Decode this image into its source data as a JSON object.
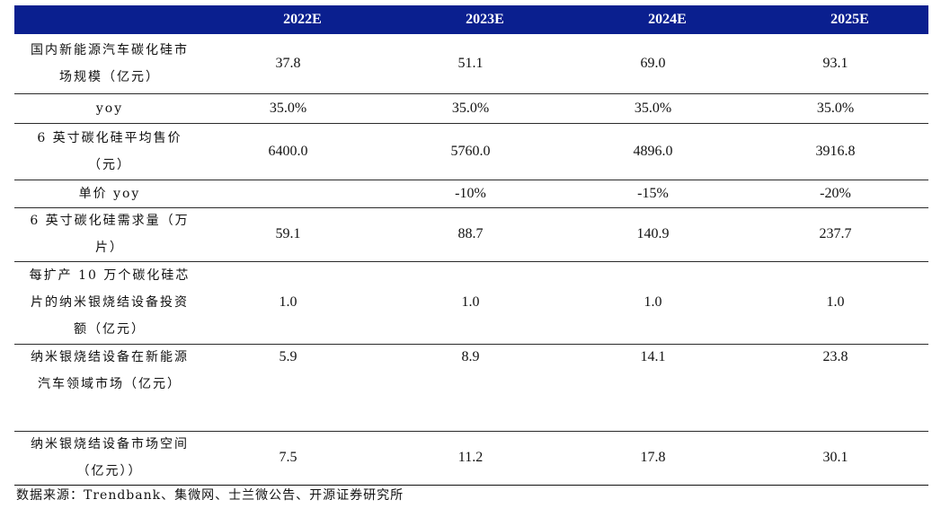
{
  "table": {
    "columns": [
      "2022E",
      "2023E",
      "2024E",
      "2025E"
    ],
    "rows": [
      {
        "label": [
          "国内新能源汽车碳化硅市",
          "场规模（亿元）"
        ],
        "values": [
          "37.8",
          "51.1",
          "69.0",
          "93.1"
        ]
      },
      {
        "label": [
          "yoy"
        ],
        "values": [
          "35.0%",
          "35.0%",
          "35.0%",
          "35.0%"
        ]
      },
      {
        "label": [
          "6 英寸碳化硅平均售价",
          "（元）"
        ],
        "values": [
          "6400.0",
          "5760.0",
          "4896.0",
          "3916.8"
        ]
      },
      {
        "label": [
          "单价 yoy"
        ],
        "values": [
          "",
          "-10%",
          "-15%",
          "-20%"
        ]
      },
      {
        "label": [
          "6 英寸碳化硅需求量（万",
          "片）"
        ],
        "values": [
          "59.1",
          "88.7",
          "140.9",
          "237.7"
        ]
      },
      {
        "label": [
          "每扩产 10 万个碳化硅芯",
          "片的纳米银烧结设备投资",
          "额（亿元）"
        ],
        "values": [
          "1.0",
          "1.0",
          "1.0",
          "1.0"
        ]
      },
      {
        "label": [
          "纳米银烧结设备在新能源",
          "",
          "汽车领域市场（亿元）"
        ],
        "values": [
          "5.9",
          "8.9",
          "14.1",
          "23.8"
        ]
      },
      {
        "label": [
          "纳米银烧结设备市场空间",
          "（亿元））"
        ],
        "values": [
          "7.5",
          "11.2",
          "17.8",
          "30.1"
        ]
      }
    ]
  },
  "source_note": "数据来源：Trendbank、集微网、士兰微公告、开源证券研究所"
}
